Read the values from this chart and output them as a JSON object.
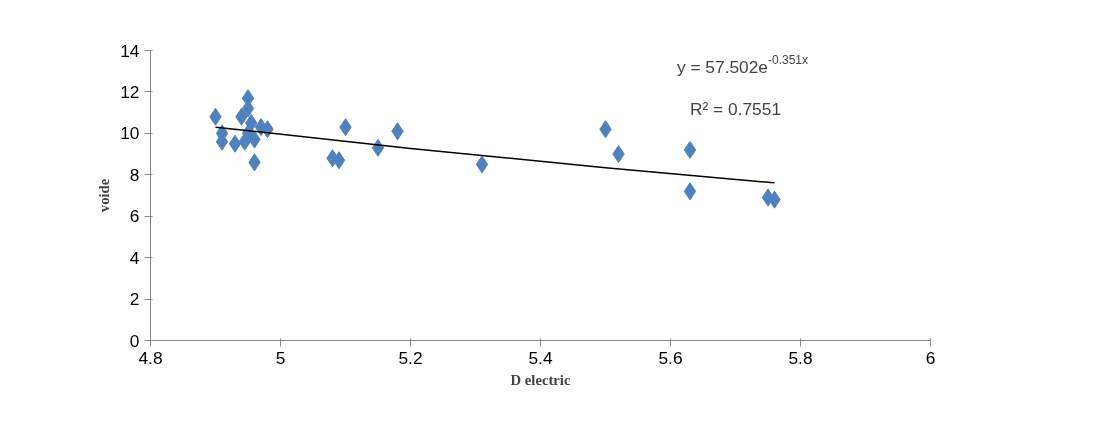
{
  "chart_data": {
    "type": "scatter",
    "xlabel": "D electric",
    "ylabel": "voide",
    "marker": "diamond",
    "grid": false,
    "xlim": [
      4.8,
      6
    ],
    "xticks": [
      {
        "value": 4.8,
        "label": "4.8"
      },
      {
        "value": 5,
        "label": "5"
      },
      {
        "value": 5.2,
        "label": "5.2"
      },
      {
        "value": 5.4,
        "label": "5.4"
      },
      {
        "value": 5.6,
        "label": "5.6"
      },
      {
        "value": 5.8,
        "label": "5.8"
      },
      {
        "value": 6,
        "label": "6"
      }
    ],
    "ylim": [
      0,
      14
    ],
    "yticks": [
      0,
      2,
      4,
      6,
      8,
      10,
      12,
      14
    ],
    "annotations": [
      "y = 57.502e$^{-0.351x}$",
      "R² = 0.7551"
    ],
    "series": [
      {
        "color": "#4f81bd",
        "x": [
          4.9,
          4.91,
          4.91,
          4.93,
          4.94,
          4.945,
          4.95,
          4.95,
          4.955,
          4.96,
          4.96,
          4.97,
          4.98,
          4.95,
          5.08,
          5.09,
          5.1,
          5.15,
          5.18,
          5.31,
          5.5,
          5.52,
          5.63,
          5.63,
          5.75,
          5.76
        ],
        "values": [
          10.8,
          10.0,
          9.6,
          9.5,
          10.8,
          9.6,
          11.7,
          11.2,
          10.5,
          9.7,
          8.6,
          10.3,
          10.2,
          10.0,
          8.8,
          8.7,
          10.3,
          9.3,
          10.1,
          8.5,
          10.2,
          9.0,
          9.2,
          7.2,
          6.9,
          6.8
        ]
      },
      {
        "type": "line",
        "marker": "none",
        "color": "#000000",
        "x": [
          4.9,
          5.2,
          5.5,
          5.76
        ],
        "values": [
          10.3,
          9.27,
          8.34,
          7.61
        ]
      }
    ]
  }
}
